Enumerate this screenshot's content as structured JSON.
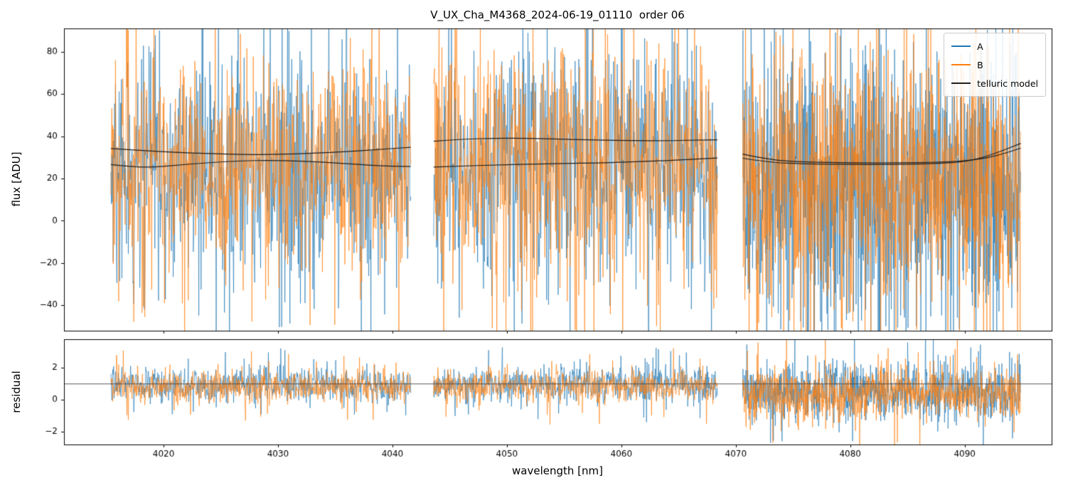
{
  "title": "V_UX_Cha_M4368_2024-06-19_01110  order 06",
  "xlabel": "wavelength [nm]",
  "legend": {
    "entries": [
      {
        "label": "A",
        "color": "#1f77b4"
      },
      {
        "label": "B",
        "color": "#ff7f0e"
      },
      {
        "label": "telluric model",
        "color": "#1f1f1f"
      }
    ]
  },
  "chart_data": [
    {
      "type": "line",
      "panel": "flux",
      "title": "V_UX_Cha_M4368_2024-06-19_01110  order 06",
      "ylabel": "flux [ADU]",
      "xlabel": "",
      "xlim": [
        4011.3,
        4097.6
      ],
      "ylim": [
        -52,
        91
      ],
      "grid": false,
      "legend_position": "upper right",
      "yticks": [
        {
          "v": -40,
          "label": "−40"
        },
        {
          "v": -20,
          "label": "−20"
        },
        {
          "v": 0,
          "label": "0"
        },
        {
          "v": 20,
          "label": "20"
        },
        {
          "v": 40,
          "label": "40"
        },
        {
          "v": 60,
          "label": "60"
        },
        {
          "v": 80,
          "label": "80"
        }
      ],
      "xticks": [
        {
          "v": 4020,
          "label": "4020"
        },
        {
          "v": 4030,
          "label": "4030"
        },
        {
          "v": 4040,
          "label": "4040"
        },
        {
          "v": 4050,
          "label": "4050"
        },
        {
          "v": 4060,
          "label": "4060"
        },
        {
          "v": 4070,
          "label": "4070"
        },
        {
          "v": 4080,
          "label": "4080"
        },
        {
          "v": 4090,
          "label": "4090"
        }
      ],
      "series": [
        {
          "name": "A",
          "color": "#1f77b4",
          "mean": 25,
          "sd": 27,
          "spike_prob": 0.07,
          "spike_range": 85
        },
        {
          "name": "B",
          "color": "#ff7f0e",
          "mean": 27,
          "sd": 25,
          "spike_prob": 0.07,
          "spike_range": 85
        }
      ],
      "segments": [
        {
          "x_start": 4015.4,
          "x_end": 4041.6,
          "step_nm": 0.04,
          "sd_scale": 1.0,
          "mean_shift": 0
        },
        {
          "x_start": 4043.6,
          "x_end": 4068.4,
          "step_nm": 0.04,
          "sd_scale": 1.05,
          "mean_shift": 2
        },
        {
          "x_start": 4070.6,
          "x_end": 4094.9,
          "step_nm": 0.028,
          "sd_scale": 1.25,
          "mean_shift": -7
        }
      ],
      "telluric_model": {
        "name": "telluric model",
        "color": "#1f1f1f",
        "lines": [
          {
            "points": [
              [
                4015.4,
                34.2
              ],
              [
                4018,
                33.3
              ],
              [
                4021,
                32.4
              ],
              [
                4024,
                31.8
              ],
              [
                4027,
                31.3
              ],
              [
                4030,
                31.4
              ],
              [
                4033,
                31.9
              ],
              [
                4036,
                32.7
              ],
              [
                4039,
                33.8
              ],
              [
                4041.6,
                34.8
              ]
            ]
          },
          {
            "points": [
              [
                4015.4,
                26.6
              ],
              [
                4017,
                25.6
              ],
              [
                4019,
                25.3
              ],
              [
                4021,
                26.2
              ],
              [
                4024,
                27.6
              ],
              [
                4027,
                28.4
              ],
              [
                4029,
                28.6
              ],
              [
                4032,
                28.3
              ],
              [
                4035,
                27.4
              ],
              [
                4038,
                26.3
              ],
              [
                4040,
                25.8
              ],
              [
                4041.6,
                25.7
              ]
            ]
          },
          {
            "points": [
              [
                4043.6,
                37.6
              ],
              [
                4046,
                38.6
              ],
              [
                4049,
                39.1
              ],
              [
                4052,
                39.0
              ],
              [
                4055,
                38.6
              ],
              [
                4058,
                38.2
              ],
              [
                4061,
                37.9
              ],
              [
                4064,
                37.9
              ],
              [
                4066,
                38.1
              ],
              [
                4068.4,
                38.3
              ]
            ]
          },
          {
            "points": [
              [
                4043.6,
                25.4
              ],
              [
                4046,
                25.9
              ],
              [
                4049,
                26.4
              ],
              [
                4052,
                26.8
              ],
              [
                4055,
                27.1
              ],
              [
                4058,
                27.4
              ],
              [
                4061,
                27.9
              ],
              [
                4064,
                28.5
              ],
              [
                4066,
                29.1
              ],
              [
                4068.4,
                29.7
              ]
            ]
          },
          {
            "points": [
              [
                4070.6,
                31.6
              ],
              [
                4073,
                28.8
              ],
              [
                4076,
                27.8
              ],
              [
                4080,
                27.4
              ],
              [
                4084,
                27.3
              ],
              [
                4088,
                27.7
              ],
              [
                4091,
                28.8
              ],
              [
                4093,
                31.0
              ],
              [
                4094.9,
                34.4
              ]
            ]
          },
          {
            "points": [
              [
                4070.6,
                29.6
              ],
              [
                4073,
                27.6
              ],
              [
                4076,
                26.9
              ],
              [
                4080,
                26.6
              ],
              [
                4084,
                26.6
              ],
              [
                4088,
                27.1
              ],
              [
                4090.5,
                28.3
              ],
              [
                4092.5,
                31.5
              ],
              [
                4094.9,
                36.6
              ]
            ]
          }
        ]
      }
    },
    {
      "type": "line",
      "panel": "residual",
      "ylabel": "residual",
      "xlabel": "wavelength [nm]",
      "xlim": [
        4011.3,
        4097.6
      ],
      "ylim": [
        -2.8,
        3.8
      ],
      "grid": false,
      "baseline": {
        "value": 1,
        "color": "#444444"
      },
      "yticks": [
        {
          "v": -2,
          "label": "−2"
        },
        {
          "v": 0,
          "label": "0"
        },
        {
          "v": 2,
          "label": "2"
        }
      ],
      "xticks": [
        {
          "v": 4020,
          "label": "4020"
        },
        {
          "v": 4030,
          "label": "4030"
        },
        {
          "v": 4040,
          "label": "4040"
        },
        {
          "v": 4050,
          "label": "4050"
        },
        {
          "v": 4060,
          "label": "4060"
        },
        {
          "v": 4070,
          "label": "4070"
        },
        {
          "v": 4080,
          "label": "4080"
        },
        {
          "v": 4090,
          "label": "4090"
        }
      ],
      "series": [
        {
          "name": "A",
          "color": "#1f77b4",
          "mean": 0.95,
          "sd": 0.58,
          "spike_prob": 0.05,
          "spike_range": 2.4
        },
        {
          "name": "B",
          "color": "#ff7f0e",
          "mean": 0.85,
          "sd": 0.5,
          "spike_prob": 0.05,
          "spike_range": 2.4
        }
      ],
      "segments": [
        {
          "x_start": 4015.4,
          "x_end": 4041.6,
          "step_nm": 0.04,
          "sd_scale": 1.0,
          "mean_shift": 0
        },
        {
          "x_start": 4043.6,
          "x_end": 4068.4,
          "step_nm": 0.04,
          "sd_scale": 1.0,
          "mean_shift": 0
        },
        {
          "x_start": 4070.6,
          "x_end": 4094.9,
          "step_nm": 0.028,
          "sd_scale": 1.6,
          "mean_shift": -0.45
        }
      ]
    }
  ]
}
